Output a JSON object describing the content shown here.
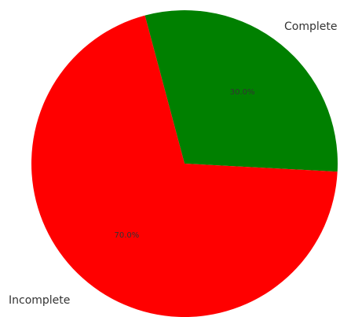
{
  "chart_data": {
    "type": "pie",
    "categories": [
      "Complete",
      "Incomplete"
    ],
    "values": [
      30.0,
      70.0
    ],
    "colors": [
      "#008000",
      "#ff0000"
    ],
    "percent_labels": [
      "30.0%",
      "70.0%"
    ],
    "start_angle_deg": 105,
    "direction": "clockwise"
  }
}
